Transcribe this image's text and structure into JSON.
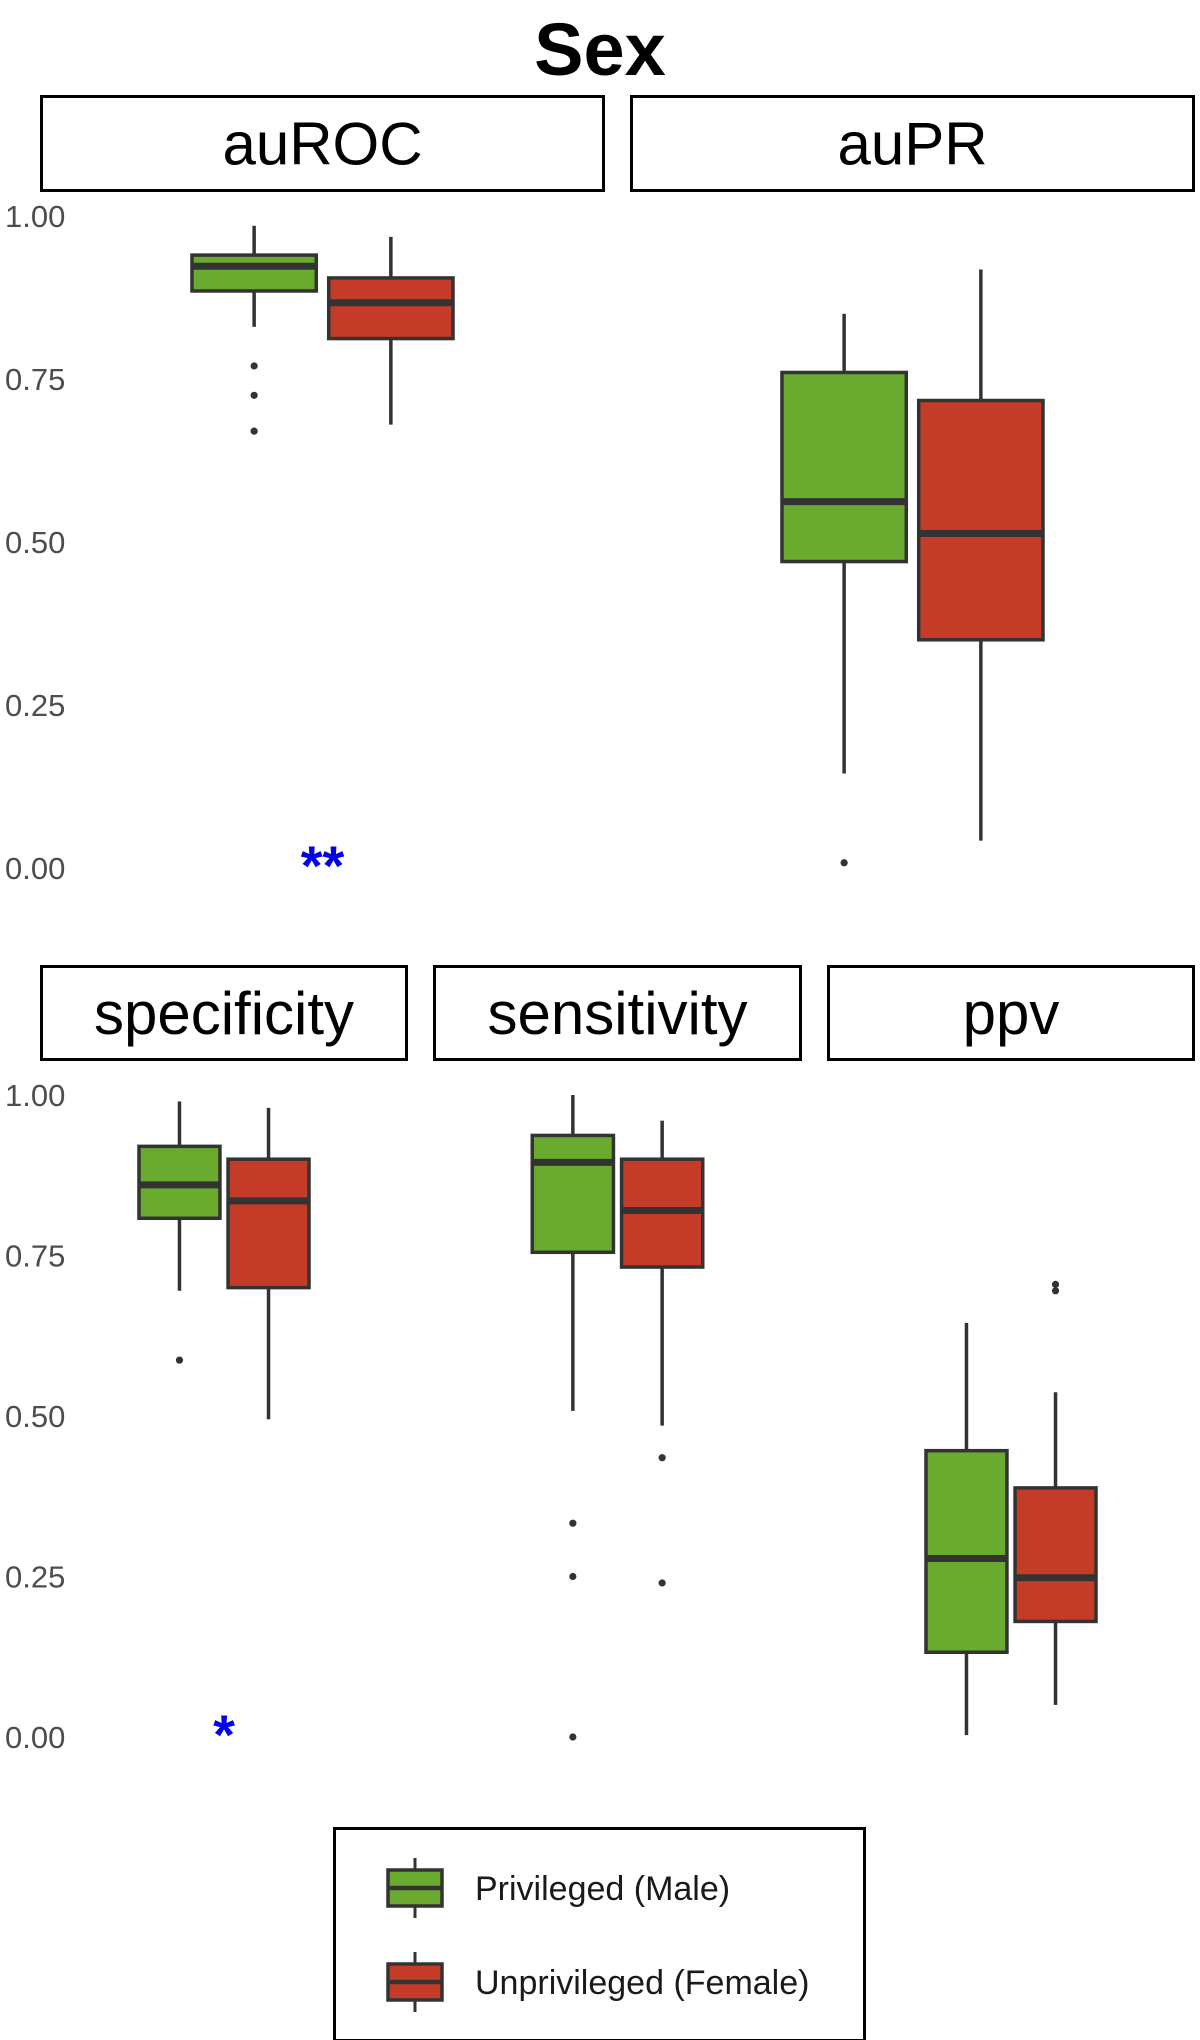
{
  "chart_data": {
    "type": "boxplot",
    "title": "Sex",
    "ylim": [
      0,
      1
    ],
    "yticks": [
      "0.00",
      "0.25",
      "0.50",
      "0.75",
      "1.00"
    ],
    "grid": false,
    "legend": {
      "placement": "bottom",
      "entries": [
        {
          "key": "privileged",
          "label": "Privileged (Male)",
          "color": "#6aaa2e"
        },
        {
          "key": "unprivileged",
          "label": "Unprivileged (Female)",
          "color": "#c43c28"
        }
      ]
    },
    "panels": [
      {
        "title": "auROC",
        "row": 0,
        "col": 0,
        "significance": "**",
        "series": {
          "privileged": {
            "min": 0.83,
            "q1": 0.885,
            "median": 0.923,
            "q3": 0.94,
            "max": 0.985,
            "outliers": [
              0.77,
              0.725,
              0.67
            ]
          },
          "unprivileged": {
            "min": 0.68,
            "q1": 0.812,
            "median": 0.867,
            "q3": 0.905,
            "max": 0.968,
            "outliers": []
          }
        }
      },
      {
        "title": "auPR",
        "row": 0,
        "col": 1,
        "significance": "",
        "series": {
          "privileged": {
            "min": 0.145,
            "q1": 0.47,
            "median": 0.562,
            "q3": 0.76,
            "max": 0.85,
            "outliers": [
              0.008
            ]
          },
          "unprivileged": {
            "min": 0.042,
            "q1": 0.35,
            "median": 0.513,
            "q3": 0.717,
            "max": 0.918,
            "outliers": []
          }
        }
      },
      {
        "title": "specificity",
        "row": 1,
        "col": 0,
        "significance": "*",
        "series": {
          "privileged": {
            "min": 0.695,
            "q1": 0.808,
            "median": 0.86,
            "q3": 0.92,
            "max": 0.99,
            "outliers": [
              0.587
            ]
          },
          "unprivileged": {
            "min": 0.495,
            "q1": 0.7,
            "median": 0.835,
            "q3": 0.9,
            "max": 0.98,
            "outliers": []
          }
        }
      },
      {
        "title": "sensitivity",
        "row": 1,
        "col": 1,
        "significance": "",
        "series": {
          "privileged": {
            "min": 0.508,
            "q1": 0.755,
            "median": 0.895,
            "q3": 0.937,
            "max": 1.0,
            "outliers": [
              0.333,
              0.25,
              0.0
            ]
          },
          "unprivileged": {
            "min": 0.485,
            "q1": 0.732,
            "median": 0.82,
            "q3": 0.9,
            "max": 0.96,
            "outliers": [
              0.435,
              0.24
            ]
          }
        }
      },
      {
        "title": "ppv",
        "row": 1,
        "col": 2,
        "significance": "",
        "series": {
          "privileged": {
            "min": 0.003,
            "q1": 0.132,
            "median": 0.278,
            "q3": 0.446,
            "max": 0.645,
            "outliers": []
          },
          "unprivileged": {
            "min": 0.05,
            "q1": 0.18,
            "median": 0.248,
            "q3": 0.388,
            "max": 0.537,
            "outliers": [
              0.705,
              0.695
            ]
          }
        }
      }
    ]
  }
}
